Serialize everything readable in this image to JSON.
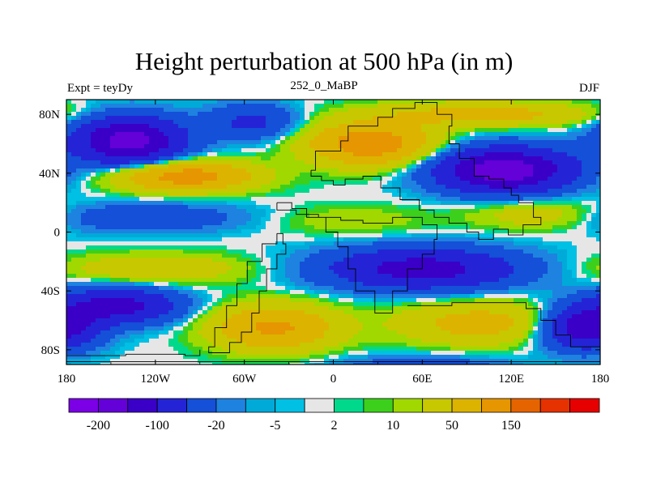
{
  "chart_data": {
    "type": "heatmap",
    "title": "Height perturbation at 500 hPa (in m)",
    "left_subtitle": "Expt = teyDy",
    "center_subtitle": "252_0_MaBP",
    "right_subtitle": "DJF",
    "x_range": [
      -180,
      180
    ],
    "y_range": [
      -90,
      90
    ],
    "x_ticks": [
      {
        "value": -180,
        "label": "180"
      },
      {
        "value": -120,
        "label": "120W"
      },
      {
        "value": -60,
        "label": "60W"
      },
      {
        "value": 0,
        "label": "0"
      },
      {
        "value": 60,
        "label": "60E"
      },
      {
        "value": 120,
        "label": "120E"
      },
      {
        "value": 180,
        "label": "180"
      }
    ],
    "y_ticks": [
      {
        "value": 80,
        "label": "80N"
      },
      {
        "value": 40,
        "label": "40N"
      },
      {
        "value": 0,
        "label": "0"
      },
      {
        "value": -40,
        "label": "40S"
      },
      {
        "value": -80,
        "label": "80S"
      }
    ],
    "colorbar": {
      "colors": [
        "#7b00e6",
        "#6400d8",
        "#3a00c8",
        "#2424d6",
        "#1450d8",
        "#1e82e0",
        "#00aad8",
        "#00c0e4",
        "#e6e6e6",
        "#00d98c",
        "#3cd01c",
        "#a0d800",
        "#c8c800",
        "#dcb400",
        "#e69600",
        "#e66400",
        "#e63200",
        "#e60000"
      ],
      "levels": [
        -200,
        -150,
        -100,
        -50,
        -20,
        -10,
        -5,
        -2,
        2,
        5,
        10,
        20,
        50,
        100,
        150,
        200
      ],
      "labels": [
        {
          "level": -200,
          "text": "-200"
        },
        {
          "level": -100,
          "text": "-100"
        },
        {
          "level": -20,
          "text": "-20"
        },
        {
          "level": -5,
          "text": "-5"
        },
        {
          "level": 2,
          "text": "2"
        },
        {
          "level": 10,
          "text": "10"
        },
        {
          "level": 50,
          "text": "50"
        },
        {
          "level": 150,
          "text": "150"
        }
      ]
    },
    "features": [
      {
        "name": "trough-north-pacific",
        "lon": -138,
        "lat": 62,
        "amp": -175,
        "slon": 36,
        "slat": 16
      },
      {
        "name": "trough-north-atlantic",
        "lon": -55,
        "lat": 75,
        "amp": -60,
        "slon": 30,
        "slat": 12
      },
      {
        "name": "ridge-north-pacific",
        "lon": -100,
        "lat": 38,
        "amp": 130,
        "slon": 45,
        "slat": 10
      },
      {
        "name": "ridge-tethys",
        "lon": 25,
        "lat": 60,
        "amp": 140,
        "slon": 40,
        "slat": 14
      },
      {
        "name": "ridge-arctic",
        "lon": 100,
        "lat": 80,
        "amp": 70,
        "slon": 70,
        "slat": 8
      },
      {
        "name": "trough-asia",
        "lon": 115,
        "lat": 42,
        "amp": -185,
        "slon": 45,
        "slat": 15
      },
      {
        "name": "ridge-east-asia",
        "lon": 140,
        "lat": 12,
        "amp": 40,
        "slon": 45,
        "slat": 10
      },
      {
        "name": "trough-tropical-pacific",
        "lon": -130,
        "lat": 10,
        "amp": -45,
        "slon": 70,
        "slat": 10
      },
      {
        "name": "ridge-africa-equator",
        "lon": 10,
        "lat": 8,
        "amp": 18,
        "slon": 55,
        "slat": 10
      },
      {
        "name": "ridge-south-pacific",
        "lon": -120,
        "lat": -25,
        "amp": 45,
        "slon": 60,
        "slat": 10
      },
      {
        "name": "trough-south-atlantic",
        "lon": 60,
        "lat": -25,
        "amp": -125,
        "slon": 65,
        "slat": 14
      },
      {
        "name": "trough-southeast-pacific",
        "lon": -145,
        "lat": -50,
        "amp": -120,
        "slon": 40,
        "slat": 12
      },
      {
        "name": "ridge-southern-ocean",
        "lon": -40,
        "lat": -65,
        "amp": 110,
        "slon": 40,
        "slat": 15
      },
      {
        "name": "ridge-indian-south",
        "lon": 100,
        "lat": -62,
        "amp": 70,
        "slon": 55,
        "slat": 14
      },
      {
        "name": "trough-southwest-pacific",
        "lon": 170,
        "lat": -65,
        "amp": -150,
        "slon": 30,
        "slat": 14
      },
      {
        "name": "trough-far-south",
        "lon": 60,
        "lat": -92,
        "amp": -40,
        "slon": 60,
        "slat": 8
      }
    ],
    "coastline": [
      [
        [
          -15,
          42
        ],
        [
          -12,
          55
        ],
        [
          5,
          62
        ],
        [
          10,
          72
        ],
        [
          30,
          78
        ],
        [
          40,
          84
        ],
        [
          55,
          88
        ],
        [
          70,
          80
        ],
        [
          80,
          72
        ],
        [
          78,
          60
        ],
        [
          85,
          50
        ],
        [
          95,
          38
        ],
        [
          105,
          36
        ],
        [
          115,
          30
        ],
        [
          120,
          25
        ],
        [
          125,
          20
        ],
        [
          135,
          10
        ],
        [
          140,
          5
        ],
        [
          128,
          -2
        ],
        [
          118,
          2
        ],
        [
          108,
          -5
        ],
        [
          98,
          0
        ],
        [
          90,
          6
        ],
        [
          78,
          10
        ],
        [
          68,
          15
        ],
        [
          58,
          22
        ],
        [
          45,
          30
        ],
        [
          32,
          38
        ],
        [
          20,
          36
        ],
        [
          8,
          32
        ],
        [
          0,
          35
        ],
        [
          -8,
          38
        ],
        [
          -15,
          42
        ]
      ],
      [
        [
          -38,
          20
        ],
        [
          -28,
          16
        ],
        [
          -18,
          10
        ],
        [
          -5,
          0
        ],
        [
          3,
          -10
        ],
        [
          10,
          -25
        ],
        [
          15,
          -40
        ],
        [
          28,
          -55
        ],
        [
          40,
          -40
        ],
        [
          50,
          -25
        ],
        [
          60,
          -15
        ],
        [
          68,
          -5
        ],
        [
          70,
          5
        ],
        [
          60,
          10
        ],
        [
          40,
          6
        ],
        [
          20,
          8
        ],
        [
          5,
          10
        ],
        [
          -10,
          12
        ],
        [
          -25,
          15
        ],
        [
          -38,
          20
        ]
      ],
      [
        [
          -38,
          -1
        ],
        [
          -34,
          -8
        ],
        [
          -32,
          -15
        ],
        [
          -38,
          -25
        ],
        [
          -45,
          -40
        ],
        [
          -50,
          -55
        ],
        [
          -55,
          -68
        ],
        [
          -62,
          -75
        ],
        [
          -70,
          -82
        ],
        [
          -80,
          -82
        ],
        [
          -84,
          -78
        ],
        [
          -80,
          -65
        ],
        [
          -72,
          -50
        ],
        [
          -65,
          -35
        ],
        [
          -58,
          -20
        ],
        [
          -48,
          -8
        ],
        [
          -38,
          -1
        ]
      ],
      [
        [
          50,
          -50
        ],
        [
          80,
          -48
        ],
        [
          110,
          -48
        ],
        [
          130,
          -52
        ],
        [
          140,
          -60
        ],
        [
          150,
          -70
        ],
        [
          160,
          -78
        ],
        [
          180,
          -80
        ],
        [
          180,
          -88
        ],
        [
          -180,
          -88
        ],
        [
          -180,
          -84
        ],
        [
          -140,
          -83
        ],
        [
          -100,
          -84
        ],
        [
          -90,
          -80
        ]
      ]
    ]
  }
}
